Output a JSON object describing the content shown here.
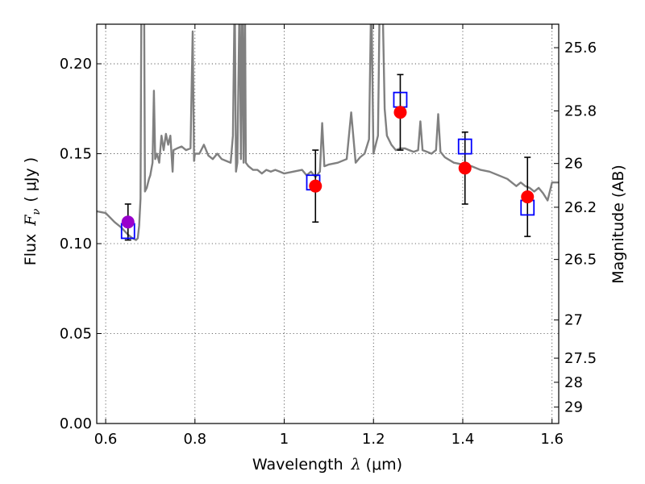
{
  "chart_data": {
    "type": "scatter",
    "xlabel_prefix": "Wavelength",
    "xlabel_symbol": "λ",
    "xlabel_unit": "(μm)",
    "ylabel_prefix": "Flux",
    "ylabel_symbol": "F",
    "ylabel_subscript": "ν",
    "ylabel_unit": "( μJy )",
    "y2label": "Magnitude (AB)",
    "xlim": [
      0.58,
      1.615
    ],
    "ylim": [
      0.0,
      0.222
    ],
    "x_ticks": [
      0.6,
      0.8,
      1.0,
      1.2,
      1.4,
      1.6
    ],
    "x_tick_labels": [
      "0.6",
      "0.8",
      "1",
      "1.2",
      "1.4",
      "1.6"
    ],
    "y_ticks": [
      0.0,
      0.05,
      0.1,
      0.15,
      0.2
    ],
    "y_tick_labels": [
      "0.00",
      "0.05",
      "0.10",
      "0.15",
      "0.20"
    ],
    "y2_ticks": [
      25.6,
      25.8,
      26.0,
      26.2,
      26.5,
      27.0,
      27.5,
      28.0,
      29.0
    ],
    "y2_tick_labels": [
      "25.6",
      "25.8",
      "26",
      "26.2",
      "26.5",
      "27",
      "27.5",
      "28",
      "29"
    ],
    "grid": true,
    "colors": {
      "model_line": "#808080",
      "observed": "#ff0000",
      "observed_first": "#9900cc",
      "model_box": "#0000ff",
      "errorbar": "#000000"
    },
    "observed_points": [
      {
        "x": 0.65,
        "y": 0.112,
        "yerr": 0.01
      },
      {
        "x": 1.07,
        "y": 0.132,
        "yerr": 0.02
      },
      {
        "x": 1.26,
        "y": 0.173,
        "yerr": 0.021
      },
      {
        "x": 1.405,
        "y": 0.142,
        "yerr": 0.02
      },
      {
        "x": 1.545,
        "y": 0.126,
        "yerr": 0.022
      }
    ],
    "model_photometry": [
      {
        "x": 0.65,
        "y": 0.107
      },
      {
        "x": 1.065,
        "y": 0.134
      },
      {
        "x": 1.26,
        "y": 0.18
      },
      {
        "x": 1.405,
        "y": 0.154
      },
      {
        "x": 1.545,
        "y": 0.12
      }
    ],
    "spectrum": [
      [
        0.58,
        0.118
      ],
      [
        0.6,
        0.117
      ],
      [
        0.62,
        0.112
      ],
      [
        0.635,
        0.109
      ],
      [
        0.65,
        0.105
      ],
      [
        0.66,
        0.103
      ],
      [
        0.668,
        0.102
      ],
      [
        0.672,
        0.103
      ],
      [
        0.675,
        0.11
      ],
      [
        0.678,
        0.125
      ],
      [
        0.68,
        0.24
      ],
      [
        0.686,
        0.24
      ],
      [
        0.688,
        0.129
      ],
      [
        0.692,
        0.131
      ],
      [
        0.697,
        0.136
      ],
      [
        0.7,
        0.138
      ],
      [
        0.705,
        0.145
      ],
      [
        0.708,
        0.185
      ],
      [
        0.711,
        0.147
      ],
      [
        0.715,
        0.15
      ],
      [
        0.72,
        0.145
      ],
      [
        0.725,
        0.16
      ],
      [
        0.73,
        0.152
      ],
      [
        0.735,
        0.161
      ],
      [
        0.74,
        0.155
      ],
      [
        0.745,
        0.16
      ],
      [
        0.75,
        0.14
      ],
      [
        0.752,
        0.152
      ],
      [
        0.76,
        0.153
      ],
      [
        0.77,
        0.154
      ],
      [
        0.78,
        0.152
      ],
      [
        0.79,
        0.153
      ],
      [
        0.795,
        0.218
      ],
      [
        0.798,
        0.146
      ],
      [
        0.8,
        0.15
      ],
      [
        0.81,
        0.15
      ],
      [
        0.82,
        0.155
      ],
      [
        0.83,
        0.149
      ],
      [
        0.84,
        0.147
      ],
      [
        0.85,
        0.15
      ],
      [
        0.86,
        0.147
      ],
      [
        0.87,
        0.146
      ],
      [
        0.88,
        0.145
      ],
      [
        0.885,
        0.16
      ],
      [
        0.889,
        0.24
      ],
      [
        0.892,
        0.14
      ],
      [
        0.895,
        0.145
      ],
      [
        0.9,
        0.24
      ],
      [
        0.903,
        0.147
      ],
      [
        0.906,
        0.24
      ],
      [
        0.909,
        0.145
      ],
      [
        0.912,
        0.24
      ],
      [
        0.914,
        0.145
      ],
      [
        0.92,
        0.143
      ],
      [
        0.93,
        0.141
      ],
      [
        0.94,
        0.141
      ],
      [
        0.95,
        0.139
      ],
      [
        0.96,
        0.141
      ],
      [
        0.97,
        0.14
      ],
      [
        0.98,
        0.141
      ],
      [
        0.99,
        0.14
      ],
      [
        1.0,
        0.139
      ],
      [
        1.02,
        0.14
      ],
      [
        1.04,
        0.141
      ],
      [
        1.05,
        0.138
      ],
      [
        1.06,
        0.14
      ],
      [
        1.07,
        0.137
      ],
      [
        1.08,
        0.14
      ],
      [
        1.085,
        0.167
      ],
      [
        1.09,
        0.143
      ],
      [
        1.1,
        0.144
      ],
      [
        1.12,
        0.145
      ],
      [
        1.14,
        0.147
      ],
      [
        1.15,
        0.173
      ],
      [
        1.16,
        0.145
      ],
      [
        1.17,
        0.148
      ],
      [
        1.18,
        0.15
      ],
      [
        1.19,
        0.158
      ],
      [
        1.195,
        0.24
      ],
      [
        1.2,
        0.15
      ],
      [
        1.21,
        0.16
      ],
      [
        1.212,
        0.198
      ],
      [
        1.214,
        0.24
      ],
      [
        1.22,
        0.24
      ],
      [
        1.225,
        0.175
      ],
      [
        1.23,
        0.16
      ],
      [
        1.24,
        0.155
      ],
      [
        1.25,
        0.152
      ],
      [
        1.26,
        0.153
      ],
      [
        1.27,
        0.153
      ],
      [
        1.28,
        0.152
      ],
      [
        1.29,
        0.151
      ],
      [
        1.3,
        0.152
      ],
      [
        1.305,
        0.168
      ],
      [
        1.31,
        0.152
      ],
      [
        1.32,
        0.151
      ],
      [
        1.33,
        0.15
      ],
      [
        1.34,
        0.152
      ],
      [
        1.345,
        0.172
      ],
      [
        1.35,
        0.151
      ],
      [
        1.36,
        0.148
      ],
      [
        1.38,
        0.145
      ],
      [
        1.4,
        0.144
      ],
      [
        1.42,
        0.143
      ],
      [
        1.44,
        0.141
      ],
      [
        1.46,
        0.14
      ],
      [
        1.48,
        0.138
      ],
      [
        1.5,
        0.136
      ],
      [
        1.52,
        0.132
      ],
      [
        1.53,
        0.134
      ],
      [
        1.54,
        0.132
      ],
      [
        1.55,
        0.131
      ],
      [
        1.56,
        0.129
      ],
      [
        1.57,
        0.131
      ],
      [
        1.58,
        0.128
      ],
      [
        1.59,
        0.124
      ],
      [
        1.6,
        0.134
      ],
      [
        1.615,
        0.134
      ]
    ]
  }
}
